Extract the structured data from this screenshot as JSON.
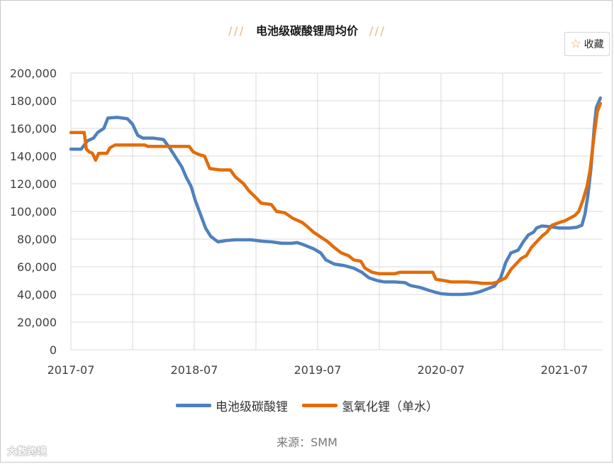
{
  "header": {
    "title": "电池级碳酸锂周均价",
    "deco_left": "///",
    "deco_right": "///"
  },
  "favorite": {
    "label": "收藏",
    "icon": "star-icon"
  },
  "source": "来源：SMM",
  "watermark": "大数跨境",
  "colors": {
    "series_blue": "#4f81bd",
    "series_orange": "#e36c0a",
    "grid": "#d9d9d9"
  },
  "chart_data": {
    "type": "line",
    "title": "电池级碳酸锂周均价",
    "xlabel": "",
    "ylabel": "",
    "ylim": [
      0,
      200000
    ],
    "y_ticks": [
      "0",
      "20,000",
      "40,000",
      "60,000",
      "80,000",
      "100,000",
      "120,000",
      "140,000",
      "160,000",
      "180,000",
      "200,000"
    ],
    "y_tick_values": [
      0,
      20000,
      40000,
      60000,
      80000,
      100000,
      120000,
      140000,
      160000,
      180000,
      200000
    ],
    "x_ticks": [
      "2017-07",
      "2018-07",
      "2019-07",
      "2020-07",
      "2021-07"
    ],
    "x_tick_months": [
      0,
      12,
      24,
      36,
      48
    ],
    "xlim_months": [
      0,
      51.5
    ],
    "grid": true,
    "legend_position": "bottom",
    "series": [
      {
        "name": "电池级碳酸锂",
        "color": "#4f81bd",
        "points": [
          [
            0,
            145000
          ],
          [
            1,
            145000
          ],
          [
            1.6,
            151000
          ],
          [
            2.2,
            153000
          ],
          [
            2.6,
            157000
          ],
          [
            3.2,
            160000
          ],
          [
            3.6,
            167500
          ],
          [
            4.5,
            168000
          ],
          [
            5.5,
            167000
          ],
          [
            6.0,
            163000
          ],
          [
            6.5,
            155000
          ],
          [
            7,
            153000
          ],
          [
            8,
            153000
          ],
          [
            9,
            152000
          ],
          [
            9.6,
            146000
          ],
          [
            10.2,
            139000
          ],
          [
            10.8,
            132000
          ],
          [
            11.2,
            125000
          ],
          [
            11.7,
            118000
          ],
          [
            12.1,
            108000
          ],
          [
            12.6,
            98000
          ],
          [
            13.1,
            88000
          ],
          [
            13.6,
            82000
          ],
          [
            14.3,
            78000
          ],
          [
            15.2,
            79000
          ],
          [
            16,
            79500
          ],
          [
            17.5,
            79500
          ],
          [
            18.5,
            78500
          ],
          [
            19.5,
            78000
          ],
          [
            20.5,
            77000
          ],
          [
            21.5,
            77000
          ],
          [
            22.0,
            77500
          ],
          [
            22.6,
            76000
          ],
          [
            23.6,
            73000
          ],
          [
            24.3,
            70000
          ],
          [
            24.8,
            65000
          ],
          [
            25.6,
            62000
          ],
          [
            26.5,
            61000
          ],
          [
            27.5,
            59000
          ],
          [
            28.3,
            56000
          ],
          [
            29.0,
            52000
          ],
          [
            29.8,
            50000
          ],
          [
            30.5,
            49000
          ],
          [
            31.5,
            49000
          ],
          [
            32.5,
            48500
          ],
          [
            33.0,
            46500
          ],
          [
            34.0,
            45000
          ],
          [
            34.8,
            43000
          ],
          [
            35.5,
            41500
          ],
          [
            36.0,
            40500
          ],
          [
            37,
            40000
          ],
          [
            38,
            40000
          ],
          [
            39.0,
            40500
          ],
          [
            39.8,
            42000
          ],
          [
            40.5,
            44000
          ],
          [
            41.2,
            46000
          ],
          [
            41.8,
            52000
          ],
          [
            42.3,
            63000
          ],
          [
            42.8,
            70000
          ],
          [
            43.5,
            72000
          ],
          [
            44.0,
            78000
          ],
          [
            44.5,
            83000
          ],
          [
            45.0,
            85000
          ],
          [
            45.3,
            88000
          ],
          [
            45.8,
            89500
          ],
          [
            46.5,
            89000
          ],
          [
            47.5,
            88000
          ],
          [
            48.5,
            88000
          ],
          [
            49.2,
            88500
          ],
          [
            49.7,
            90000
          ],
          [
            50.0,
            98000
          ],
          [
            50.3,
            112000
          ],
          [
            50.6,
            132000
          ],
          [
            50.9,
            160000
          ],
          [
            51.1,
            175000
          ],
          [
            51.5,
            182000
          ]
        ]
      },
      {
        "name": "氢氧化锂（单水）",
        "color": "#e36c0a",
        "points": [
          [
            0,
            157000
          ],
          [
            1,
            157000
          ],
          [
            1.3,
            157000
          ],
          [
            1.5,
            145000
          ],
          [
            1.8,
            143000
          ],
          [
            2.1,
            142000
          ],
          [
            2.4,
            137000
          ],
          [
            2.7,
            142000
          ],
          [
            3.5,
            142000
          ],
          [
            3.8,
            146000
          ],
          [
            4.3,
            148000
          ],
          [
            6,
            148000
          ],
          [
            7.2,
            148000
          ],
          [
            7.5,
            147000
          ],
          [
            9,
            147000
          ],
          [
            11.5,
            147000
          ],
          [
            11.9,
            143000
          ],
          [
            12.5,
            141000
          ],
          [
            13.0,
            140000
          ],
          [
            13.5,
            131000
          ],
          [
            14.5,
            130000
          ],
          [
            15.5,
            130000
          ],
          [
            16.0,
            125000
          ],
          [
            16.8,
            120000
          ],
          [
            17.3,
            115000
          ],
          [
            18.0,
            110000
          ],
          [
            18.5,
            106000
          ],
          [
            19.5,
            105000
          ],
          [
            20.0,
            100000
          ],
          [
            20.8,
            99000
          ],
          [
            21.6,
            95000
          ],
          [
            22.5,
            92000
          ],
          [
            23.0,
            89000
          ],
          [
            23.6,
            85000
          ],
          [
            24.2,
            82000
          ],
          [
            25.0,
            78000
          ],
          [
            25.6,
            74000
          ],
          [
            26.3,
            70000
          ],
          [
            27.0,
            68000
          ],
          [
            27.5,
            65000
          ],
          [
            28.2,
            64000
          ],
          [
            28.6,
            59000
          ],
          [
            29.3,
            56000
          ],
          [
            30.0,
            55000
          ],
          [
            31.5,
            55000
          ],
          [
            32.0,
            56000
          ],
          [
            34.0,
            56000
          ],
          [
            35.2,
            56000
          ],
          [
            35.5,
            51000
          ],
          [
            36.3,
            50000
          ],
          [
            37.0,
            49000
          ],
          [
            38.5,
            49000
          ],
          [
            39.5,
            48500
          ],
          [
            40.0,
            48000
          ],
          [
            41.0,
            48000
          ],
          [
            41.5,
            49000
          ],
          [
            42.3,
            52000
          ],
          [
            42.8,
            58000
          ],
          [
            43.3,
            62000
          ],
          [
            43.8,
            66000
          ],
          [
            44.3,
            68000
          ],
          [
            44.8,
            74000
          ],
          [
            45.3,
            78000
          ],
          [
            45.8,
            82000
          ],
          [
            46.3,
            85000
          ],
          [
            46.8,
            90000
          ],
          [
            47.5,
            92000
          ],
          [
            48.0,
            93000
          ],
          [
            48.5,
            95000
          ],
          [
            49.0,
            97000
          ],
          [
            49.4,
            100000
          ],
          [
            49.8,
            108000
          ],
          [
            50.2,
            118000
          ],
          [
            50.5,
            130000
          ],
          [
            50.9,
            155000
          ],
          [
            51.2,
            172000
          ],
          [
            51.5,
            178000
          ]
        ]
      }
    ]
  }
}
